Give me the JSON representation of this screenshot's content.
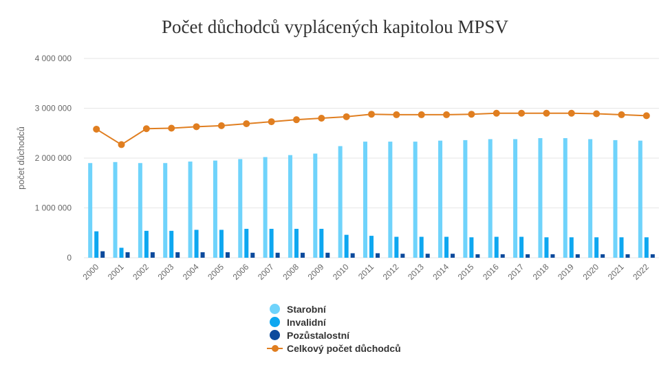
{
  "chart_data": {
    "type": "bar",
    "title": "Počet důchodců vyplácených kapitolou MPSV",
    "ylabel": "počet důchodců",
    "xlabel": "",
    "ylim": [
      0,
      4000000
    ],
    "yticks": [
      0,
      1000000,
      2000000,
      3000000,
      4000000
    ],
    "ytick_labels": [
      "0",
      "1 000 000",
      "2 000 000",
      "3 000 000",
      "4 000 000"
    ],
    "categories": [
      "2000",
      "2001",
      "2002",
      "2003",
      "2004",
      "2005",
      "2006",
      "2007",
      "2008",
      "2009",
      "2010",
      "2011",
      "2012",
      "2013",
      "2014",
      "2015",
      "2016",
      "2017",
      "2018",
      "2019",
      "2020",
      "2021",
      "2022"
    ],
    "grid": true,
    "legend_position": "bottom",
    "series": [
      {
        "name": "Starobní",
        "type": "bar",
        "color": "#6fd3fb",
        "values": [
          1900000,
          1920000,
          1900000,
          1900000,
          1930000,
          1950000,
          1980000,
          2020000,
          2060000,
          2090000,
          2240000,
          2330000,
          2330000,
          2330000,
          2350000,
          2360000,
          2380000,
          2380000,
          2400000,
          2400000,
          2380000,
          2360000,
          2350000
        ]
      },
      {
        "name": "Invalidní",
        "type": "bar",
        "color": "#0ea7f0",
        "values": [
          530000,
          200000,
          540000,
          540000,
          560000,
          560000,
          580000,
          580000,
          580000,
          580000,
          460000,
          440000,
          420000,
          420000,
          420000,
          410000,
          420000,
          420000,
          410000,
          410000,
          410000,
          410000,
          410000
        ]
      },
      {
        "name": "Pozůstalostní",
        "type": "bar",
        "color": "#0c4a9c",
        "values": [
          130000,
          110000,
          110000,
          110000,
          110000,
          110000,
          100000,
          100000,
          100000,
          100000,
          90000,
          90000,
          80000,
          80000,
          80000,
          70000,
          70000,
          70000,
          70000,
          70000,
          70000,
          70000,
          70000
        ]
      },
      {
        "name": "Celkový počet důchodců",
        "type": "line",
        "color": "#e07e20",
        "values": [
          2580000,
          2270000,
          2590000,
          2600000,
          2630000,
          2650000,
          2690000,
          2730000,
          2770000,
          2800000,
          2830000,
          2880000,
          2870000,
          2870000,
          2870000,
          2880000,
          2900000,
          2900000,
          2900000,
          2900000,
          2890000,
          2870000,
          2850000
        ]
      }
    ]
  }
}
